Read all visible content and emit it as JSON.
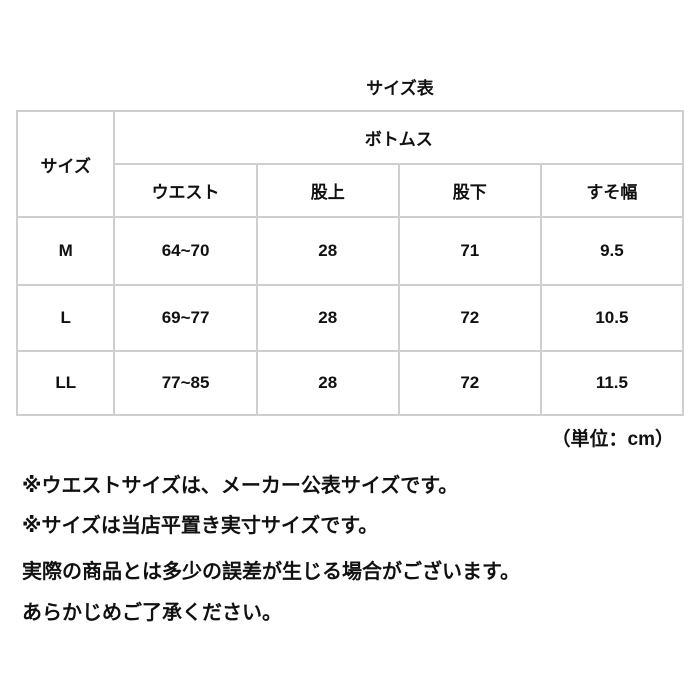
{
  "title": "サイズ表",
  "table": {
    "size_header": "サイズ",
    "group_header": "ボトムス",
    "columns": [
      "ウエスト",
      "股上",
      "股下",
      "すそ幅"
    ],
    "rows": [
      {
        "size": "M",
        "values": [
          "64~70",
          "28",
          "71",
          "9.5"
        ]
      },
      {
        "size": "L",
        "values": [
          "69~77",
          "28",
          "72",
          "10.5"
        ]
      },
      {
        "size": "LL",
        "values": [
          "77~85",
          "28",
          "72",
          "11.5"
        ]
      }
    ]
  },
  "unit": "（単位：cm）",
  "notes": [
    "※ウエストサイズは、メーカー公表サイズです。",
    "※サイズは当店平置き実寸サイズです。",
    "実際の商品とは多少の誤差が生じる場合がございます。",
    "あらかじめご了承ください。"
  ]
}
